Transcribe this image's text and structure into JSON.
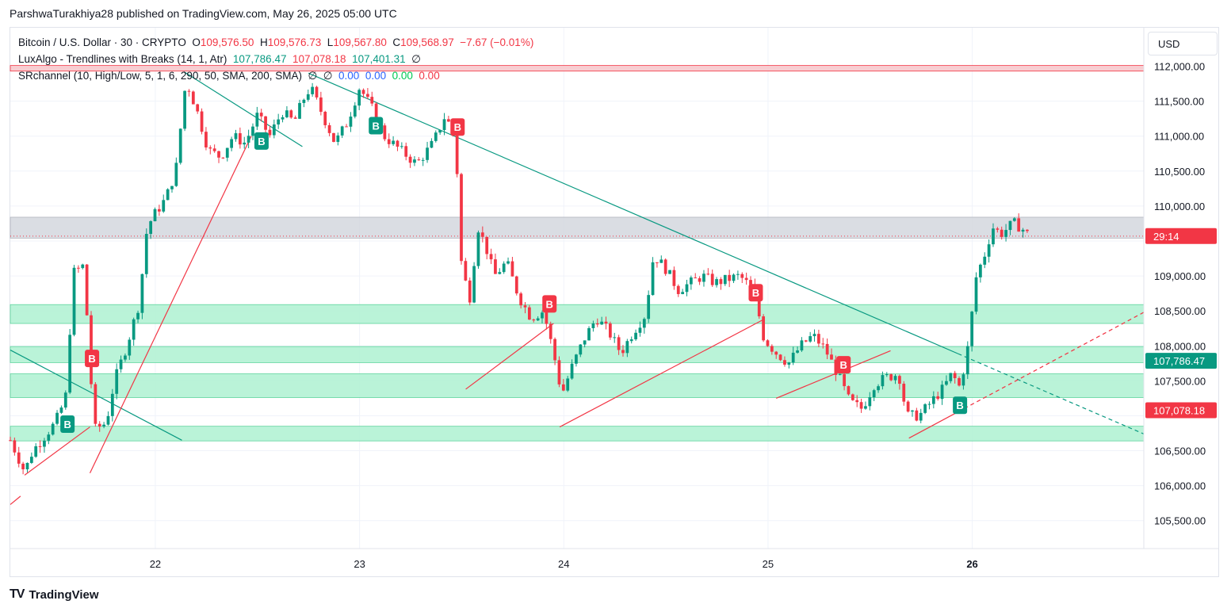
{
  "header": {
    "published": "ParshwaTurakhiya28 published on TradingView.com, May 26, 2025 05:00 UTC"
  },
  "legend": {
    "symbol": "Bitcoin / U.S. Dollar · 30 · CRYPTO",
    "o_label": "O",
    "o_value": "109,576.50",
    "h_label": "H",
    "h_value": "109,576.73",
    "l_label": "L",
    "l_value": "109,567.80",
    "c_label": "C",
    "c_value": "109,568.97",
    "change": "−7.67 (−0.01%)",
    "ind1_name": "LuxAlgo - Trendlines with Breaks (14, 1, Atr)",
    "ind1_v1": "107,786.47",
    "ind1_v2": "107,078.18",
    "ind1_v3": "107,401.31",
    "ind1_v4": "∅",
    "ind2_name": "SRchannel (10, High/Low, 5, 1, 6, 290, 50, SMA, 200, SMA)",
    "ind2_v1": "∅",
    "ind2_v2": "∅",
    "ind2_v3": "0.00",
    "ind2_v4": "0.00",
    "ind2_v5": "0.00",
    "ind2_v6": "0.00"
  },
  "currency_button": "USD",
  "footer": {
    "logo": "TV",
    "brand": "TradingView"
  },
  "chart_data": {
    "type": "candlestick",
    "y_ticks": [
      "112,000.00",
      "111,500.00",
      "111,000.00",
      "110,500.00",
      "110,000.00",
      "109,000.00",
      "108,500.00",
      "108,000.00",
      "107,500.00",
      "106,500.00",
      "106,000.00",
      "105,500.00"
    ],
    "y_tick_values": [
      112000,
      111500,
      111000,
      110500,
      110000,
      109000,
      108500,
      108000,
      107500,
      106500,
      106000,
      105500
    ],
    "ylim": [
      105100,
      112550
    ],
    "x_ticks": [
      {
        "label": "22",
        "t": 1.0,
        "bold": false
      },
      {
        "label": "23",
        "t": 2.0,
        "bold": false
      },
      {
        "label": "24",
        "t": 3.0,
        "bold": false
      },
      {
        "label": "25",
        "t": 4.0,
        "bold": false
      },
      {
        "label": "26",
        "t": 5.0,
        "bold": true
      }
    ],
    "xlim": [
      0.29,
      5.84
    ],
    "price_labels": [
      {
        "text": "29:14",
        "value": 109570,
        "color": "#f23645"
      },
      {
        "text": "107,786.47",
        "value": 107786.47,
        "color": "#089981"
      },
      {
        "text": "107,078.18",
        "value": 107078.18,
        "color": "#f23645"
      }
    ],
    "colors": {
      "up": "#089981",
      "down": "#f23645",
      "zone": "#b2f2d4",
      "zone_border": "#5fd59d",
      "resistance": "#f7c8cc",
      "gray_band": "#d1d4dc"
    },
    "zones": [
      {
        "type": "resistance",
        "from": 111930,
        "to": 112010
      },
      {
        "type": "gray",
        "from": 109540,
        "to": 109840
      },
      {
        "type": "support",
        "from": 108320,
        "to": 108590
      },
      {
        "type": "support",
        "from": 107760,
        "to": 107990
      },
      {
        "type": "support",
        "from": 107260,
        "to": 107600
      },
      {
        "type": "support",
        "from": 106640,
        "to": 106850
      }
    ],
    "trendlines": [
      {
        "color": "#089981",
        "t1": 0.29,
        "v1": 107940,
        "t2": 1.13,
        "v2": 106650,
        "dashed": false
      },
      {
        "color": "#089981",
        "t1": 1.14,
        "v1": 111920,
        "t2": 1.72,
        "v2": 110850,
        "dashed": false
      },
      {
        "color": "#089981",
        "t1": 1.75,
        "v1": 111900,
        "t2": 5.84,
        "v2": 106740,
        "dashed": false,
        "dash_from": 4.93
      },
      {
        "color": "#f23645",
        "t1": 0.36,
        "v1": 106150,
        "t2": 0.68,
        "v2": 106840,
        "dashed": false
      },
      {
        "color": "#f23645",
        "t1": 0.68,
        "v1": 106180,
        "t2": 1.47,
        "v2": 111000,
        "dashed": false
      },
      {
        "color": "#f23645",
        "t1": 2.52,
        "v1": 107380,
        "t2": 2.95,
        "v2": 108320,
        "dashed": false
      },
      {
        "color": "#f23645",
        "t1": 2.98,
        "v1": 106840,
        "t2": 3.98,
        "v2": 108380,
        "dashed": false
      },
      {
        "color": "#f23645",
        "t1": 4.04,
        "v1": 107250,
        "t2": 4.6,
        "v2": 107930,
        "dashed": false
      },
      {
        "color": "#f23645",
        "t1": 4.69,
        "v1": 106680,
        "t2": 5.84,
        "v2": 108480,
        "dashed": false,
        "dash_from": 4.93
      },
      {
        "color": "#f23645",
        "t1": 0.29,
        "v1": 105730,
        "t2": 0.34,
        "v2": 105850,
        "dashed": false
      }
    ],
    "markers": [
      {
        "label": "B",
        "t": 0.57,
        "value": 106880,
        "color": "#089981"
      },
      {
        "label": "B",
        "t": 0.69,
        "value": 107820,
        "color": "#f23645"
      },
      {
        "label": "B",
        "t": 1.52,
        "value": 110930,
        "color": "#089981"
      },
      {
        "label": "B",
        "t": 2.08,
        "value": 111150,
        "color": "#089981"
      },
      {
        "label": "B",
        "t": 2.48,
        "value": 111130,
        "color": "#f23645"
      },
      {
        "label": "B",
        "t": 2.93,
        "value": 108600,
        "color": "#f23645"
      },
      {
        "label": "B",
        "t": 3.94,
        "value": 108760,
        "color": "#f23645"
      },
      {
        "label": "B",
        "t": 4.37,
        "value": 107730,
        "color": "#f23645"
      },
      {
        "label": "B",
        "t": 4.94,
        "value": 107150,
        "color": "#089981"
      }
    ],
    "close_path": [
      [
        0.29,
        106650
      ],
      [
        0.36,
        106200
      ],
      [
        0.4,
        106500
      ],
      [
        0.45,
        106680
      ],
      [
        0.51,
        106900
      ],
      [
        0.56,
        107250
      ],
      [
        0.6,
        109050
      ],
      [
        0.65,
        109150
      ],
      [
        0.7,
        106800
      ],
      [
        0.76,
        106900
      ],
      [
        0.8,
        107500
      ],
      [
        0.86,
        108000
      ],
      [
        0.92,
        108600
      ],
      [
        0.96,
        109700
      ],
      [
        1.0,
        109900
      ],
      [
        1.05,
        110100
      ],
      [
        1.1,
        110500
      ],
      [
        1.15,
        111800
      ],
      [
        1.2,
        111400
      ],
      [
        1.26,
        110800
      ],
      [
        1.32,
        110700
      ],
      [
        1.38,
        111000
      ],
      [
        1.44,
        110900
      ],
      [
        1.5,
        111300
      ],
      [
        1.56,
        111000
      ],
      [
        1.62,
        111350
      ],
      [
        1.68,
        111200
      ],
      [
        1.72,
        111500
      ],
      [
        1.76,
        111700
      ],
      [
        1.82,
        111300
      ],
      [
        1.88,
        110900
      ],
      [
        1.94,
        111200
      ],
      [
        2.0,
        111700
      ],
      [
        2.06,
        111400
      ],
      [
        2.12,
        111000
      ],
      [
        2.2,
        110800
      ],
      [
        2.28,
        110600
      ],
      [
        2.36,
        110900
      ],
      [
        2.42,
        111300
      ],
      [
        2.47,
        110950
      ],
      [
        2.5,
        109100
      ],
      [
        2.54,
        108700
      ],
      [
        2.58,
        109700
      ],
      [
        2.62,
        109400
      ],
      [
        2.66,
        109000
      ],
      [
        2.72,
        109200
      ],
      [
        2.78,
        108700
      ],
      [
        2.84,
        108400
      ],
      [
        2.9,
        108500
      ],
      [
        2.95,
        107900
      ],
      [
        2.99,
        107300
      ],
      [
        3.04,
        107700
      ],
      [
        3.1,
        108100
      ],
      [
        3.16,
        108400
      ],
      [
        3.22,
        108200
      ],
      [
        3.28,
        107900
      ],
      [
        3.34,
        108200
      ],
      [
        3.4,
        108450
      ],
      [
        3.44,
        109300
      ],
      [
        3.5,
        109100
      ],
      [
        3.56,
        108800
      ],
      [
        3.62,
        108900
      ],
      [
        3.68,
        109000
      ],
      [
        3.74,
        108900
      ],
      [
        3.8,
        108950
      ],
      [
        3.86,
        109000
      ],
      [
        3.93,
        108800
      ],
      [
        3.98,
        108100
      ],
      [
        4.04,
        107900
      ],
      [
        4.1,
        107750
      ],
      [
        4.16,
        108000
      ],
      [
        4.22,
        108150
      ],
      [
        4.28,
        107950
      ],
      [
        4.34,
        107600
      ],
      [
        4.4,
        107200
      ],
      [
        4.46,
        107100
      ],
      [
        4.52,
        107450
      ],
      [
        4.58,
        107550
      ],
      [
        4.64,
        107600
      ],
      [
        4.68,
        107000
      ],
      [
        4.74,
        107000
      ],
      [
        4.8,
        107200
      ],
      [
        4.86,
        107400
      ],
      [
        4.9,
        107600
      ],
      [
        4.94,
        107400
      ],
      [
        4.98,
        108000
      ],
      [
        5.02,
        109000
      ],
      [
        5.06,
        109300
      ],
      [
        5.1,
        109700
      ],
      [
        5.14,
        109600
      ],
      [
        5.18,
        109700
      ],
      [
        5.2,
        109760
      ],
      [
        5.24,
        109690
      ],
      [
        5.28,
        109569
      ]
    ]
  }
}
